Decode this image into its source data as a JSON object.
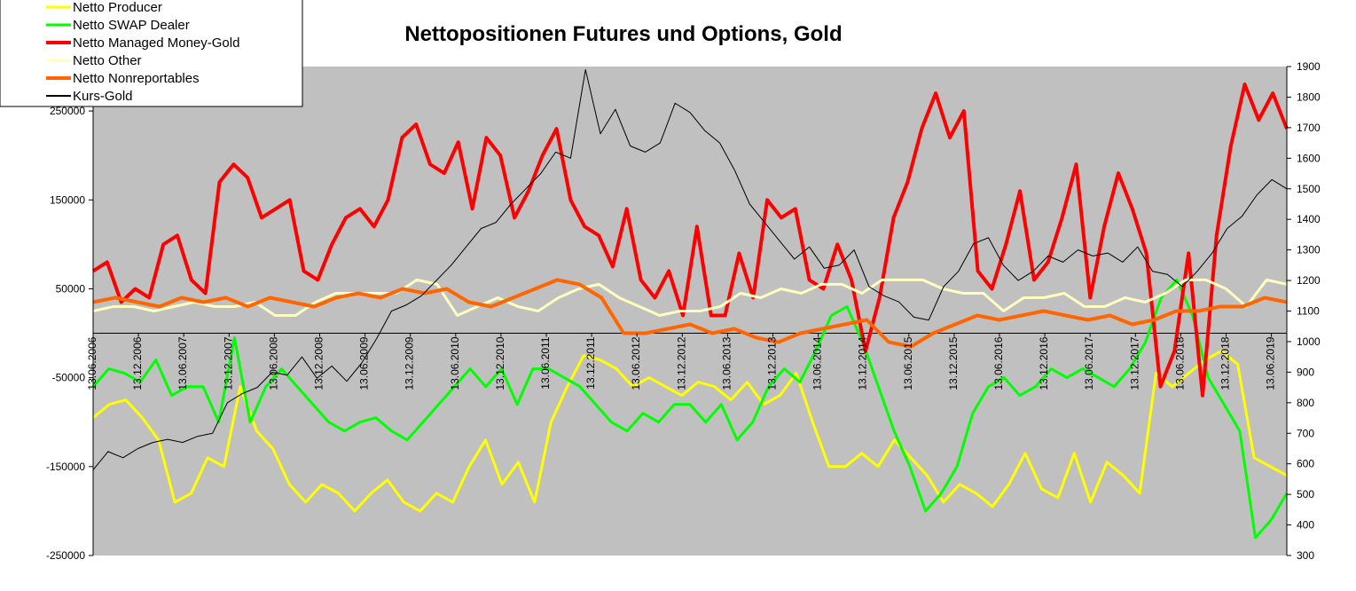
{
  "chart_data": {
    "type": "line",
    "title": "Nettopositionen Futures und Options, Gold",
    "plot_background": "#c0c0c0",
    "legend_position": "top-left",
    "grid": false,
    "y_left": {
      "range": [
        -250000,
        300000
      ],
      "ticks": [
        250000,
        150000,
        50000,
        -50000,
        -150000,
        -250000
      ],
      "tick_labels": [
        "250000",
        "150000",
        "50000",
        "-50000",
        "-150000",
        "-250000"
      ]
    },
    "y_right": {
      "range": [
        300,
        1900
      ],
      "ticks": [
        1900,
        1800,
        1700,
        1600,
        1500,
        1400,
        1300,
        1200,
        1100,
        1000,
        900,
        800,
        700,
        600,
        500,
        400,
        300
      ],
      "tick_labels": [
        "1900",
        "1800",
        "1700",
        "1600",
        "1500",
        "1400",
        "1300",
        "1200",
        "1100",
        "1000",
        "900",
        "800",
        "700",
        "600",
        "500",
        "400",
        "300"
      ]
    },
    "x": {
      "range": [
        "13.06.2006",
        "10.12.2019"
      ],
      "categories": [
        "13.06.2006",
        "13.12.2006",
        "13.06.2007",
        "13.12.2007",
        "13.06.2008",
        "13.12.2008",
        "13.06.2009",
        "13.12.2009",
        "13.06.2010",
        "13.12.2010",
        "13.06.2011",
        "13.12.2011",
        "13.06.2012",
        "13.12.2012",
        "13.06.2013",
        "13.12.2013",
        "13.06.2014",
        "13.12.2014",
        "13.06.2015",
        "13.12.2015",
        "13.06.2016",
        "13.12.2016",
        "13.06.2017",
        "13.12.2017",
        "13.06.2018",
        "13.12.2018",
        "13.06.2019"
      ]
    },
    "series": [
      {
        "name": "Netto Producer",
        "color": "#ffff00",
        "axis": "left",
        "width": 3,
        "values": [
          -95000,
          -80000,
          -75000,
          -95000,
          -120000,
          -190000,
          -180000,
          -140000,
          -150000,
          -60000,
          -110000,
          -130000,
          -170000,
          -190000,
          -170000,
          -180000,
          -200000,
          -180000,
          -165000,
          -190000,
          -200000,
          -180000,
          -190000,
          -150000,
          -120000,
          -170000,
          -145000,
          -190000,
          -100000,
          -60000,
          -25000,
          -30000,
          -40000,
          -60000,
          -50000,
          -60000,
          -70000,
          -55000,
          -60000,
          -75000,
          -55000,
          -80000,
          -70000,
          -45000,
          -100000,
          -150000,
          -150000,
          -135000,
          -150000,
          -120000,
          -140000,
          -160000,
          -190000,
          -170000,
          -180000,
          -195000,
          -170000,
          -135000,
          -175000,
          -185000,
          -135000,
          -190000,
          -145000,
          -160000,
          -180000,
          -45000,
          -60000,
          -45000,
          -30000,
          -20000,
          -35000,
          -140000,
          -150000,
          -160000
        ]
      },
      {
        "name": "Netto SWAP Dealer",
        "color": "#00ff00",
        "axis": "left",
        "width": 3,
        "values": [
          -60000,
          -40000,
          -45000,
          -55000,
          -30000,
          -70000,
          -60000,
          -60000,
          -100000,
          -5000,
          -100000,
          -60000,
          -40000,
          -60000,
          -80000,
          -100000,
          -110000,
          -100000,
          -95000,
          -110000,
          -120000,
          -100000,
          -80000,
          -60000,
          -40000,
          -60000,
          -40000,
          -80000,
          -40000,
          -40000,
          -50000,
          -60000,
          -80000,
          -100000,
          -110000,
          -90000,
          -100000,
          -80000,
          -80000,
          -100000,
          -80000,
          -120000,
          -100000,
          -60000,
          -40000,
          -55000,
          -20000,
          20000,
          30000,
          -10000,
          -60000,
          -110000,
          -150000,
          -200000,
          -180000,
          -150000,
          -90000,
          -60000,
          -50000,
          -70000,
          -60000,
          -40000,
          -50000,
          -40000,
          -50000,
          -60000,
          -40000,
          -10000,
          40000,
          60000,
          20000,
          -50000,
          -80000,
          -110000,
          -230000,
          -210000,
          -180000
        ]
      },
      {
        "name": "Netto Managed Money-Gold",
        "color": "#ff0000",
        "axis": "left",
        "width": 4,
        "values": [
          70000,
          80000,
          35000,
          50000,
          40000,
          100000,
          110000,
          60000,
          45000,
          170000,
          190000,
          175000,
          130000,
          140000,
          150000,
          70000,
          60000,
          100000,
          130000,
          140000,
          120000,
          150000,
          220000,
          235000,
          190000,
          180000,
          215000,
          140000,
          220000,
          200000,
          130000,
          160000,
          200000,
          230000,
          150000,
          120000,
          110000,
          75000,
          140000,
          60000,
          40000,
          70000,
          20000,
          120000,
          20000,
          20000,
          90000,
          40000,
          150000,
          130000,
          140000,
          60000,
          50000,
          100000,
          60000,
          -20000,
          40000,
          130000,
          170000,
          230000,
          270000,
          220000,
          250000,
          70000,
          50000,
          100000,
          160000,
          60000,
          80000,
          130000,
          190000,
          40000,
          120000,
          180000,
          140000,
          90000,
          -60000,
          -20000,
          90000,
          -70000,
          110000,
          210000,
          280000,
          240000,
          270000,
          230000
        ]
      },
      {
        "name": "Netto Other",
        "color": "#ffffc0",
        "axis": "left",
        "width": 3,
        "values": [
          25000,
          30000,
          30000,
          25000,
          30000,
          35000,
          30000,
          30000,
          35000,
          20000,
          20000,
          35000,
          45000,
          45000,
          45000,
          45000,
          60000,
          55000,
          20000,
          30000,
          40000,
          30000,
          25000,
          40000,
          50000,
          55000,
          40000,
          30000,
          20000,
          25000,
          25000,
          30000,
          45000,
          40000,
          50000,
          45000,
          55000,
          55000,
          45000,
          60000,
          60000,
          60000,
          50000,
          45000,
          45000,
          25000,
          40000,
          40000,
          45000,
          30000,
          30000,
          40000,
          35000,
          45000,
          60000,
          60000,
          50000,
          30000,
          60000,
          55000
        ]
      },
      {
        "name": "Netto Nonreportables",
        "color": "#ff6600",
        "axis": "left",
        "width": 4,
        "values": [
          35000,
          40000,
          35000,
          30000,
          40000,
          35000,
          40000,
          30000,
          40000,
          35000,
          30000,
          40000,
          45000,
          40000,
          50000,
          45000,
          50000,
          35000,
          30000,
          40000,
          50000,
          60000,
          55000,
          40000,
          0,
          0,
          5000,
          10000,
          0,
          5000,
          -5000,
          -10000,
          0,
          5000,
          10000,
          15000,
          -10000,
          -15000,
          0,
          10000,
          20000,
          15000,
          20000,
          25000,
          20000,
          15000,
          20000,
          10000,
          15000,
          25000,
          25000,
          30000,
          30000,
          40000,
          35000
        ]
      },
      {
        "name": "Kurs-Gold",
        "color": "#000000",
        "axis": "right",
        "width": 1,
        "values": [
          580,
          640,
          620,
          650,
          670,
          680,
          670,
          690,
          700,
          800,
          830,
          850,
          900,
          890,
          950,
          880,
          920,
          870,
          930,
          1010,
          1100,
          1120,
          1150,
          1200,
          1250,
          1310,
          1370,
          1390,
          1450,
          1500,
          1550,
          1620,
          1600,
          1890,
          1680,
          1760,
          1640,
          1620,
          1650,
          1780,
          1750,
          1690,
          1650,
          1560,
          1450,
          1390,
          1330,
          1270,
          1310,
          1240,
          1250,
          1300,
          1180,
          1150,
          1130,
          1080,
          1070,
          1180,
          1230,
          1320,
          1340,
          1250,
          1200,
          1230,
          1280,
          1260,
          1300,
          1280,
          1290,
          1260,
          1310,
          1230,
          1220,
          1180,
          1230,
          1290,
          1370,
          1410,
          1480,
          1530,
          1500
        ]
      }
    ]
  }
}
